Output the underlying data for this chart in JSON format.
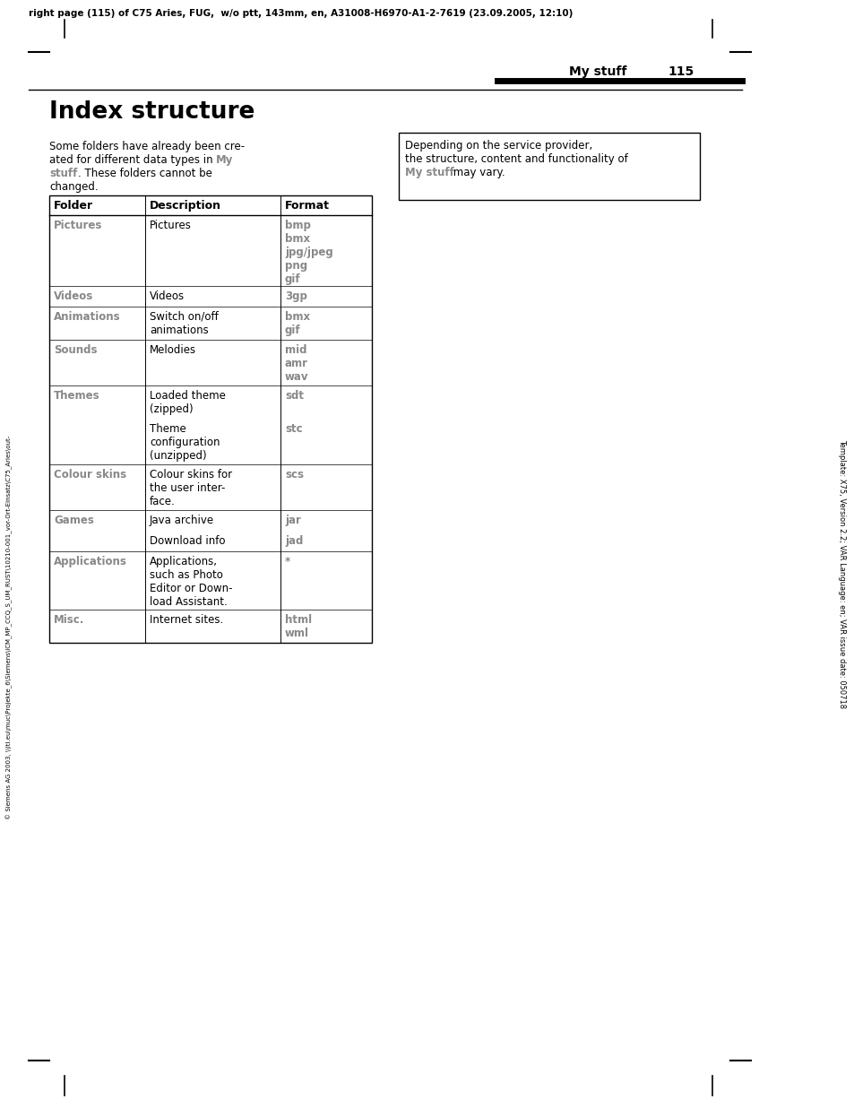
{
  "header_text": "right page (115) of C75 Aries, FUG,  w/o ptt, 143mm, en, A31008-H6970-A1-2-7619 (23.09.2005, 12:10)",
  "page_label": "My stuff",
  "page_number": "115",
  "title": "Index structure",
  "note_line1": "Depending on the service provider,",
  "note_line2": "the structure, content and functionality of",
  "note_line3a": "My stuff",
  "note_line3b": " may vary.",
  "table_headers": [
    "Folder",
    "Description",
    "Format"
  ],
  "sidebar_text": "Template: X75, Version 2.2; VAR Language: en; VAR issue date: 050718",
  "copyright_text": "© Siemens AG 2003, \\\\ltl.eu\\muc\\Projekte_6\\Siemens\\ICM_MP_CCQ_S_UM_RUST\\10210-001_vor-Ort-Einsatz\\C75_Aries\\out-",
  "bg_color": "#ffffff",
  "gray_color": "#888888",
  "black": "#000000"
}
